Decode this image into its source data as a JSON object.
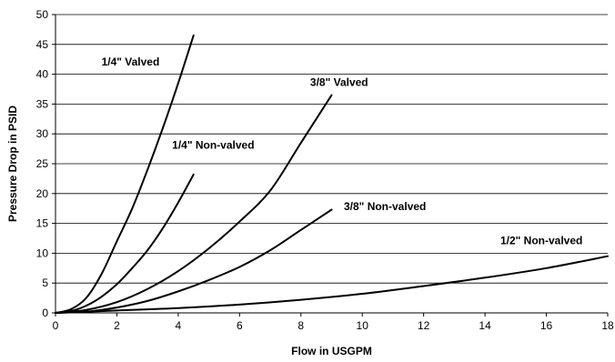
{
  "chart_data": {
    "type": "line",
    "title": "",
    "xlabel": "Flow in USGPM",
    "ylabel": "Pressure Drop in PSID",
    "xlim": [
      0,
      18
    ],
    "ylim": [
      0,
      50
    ],
    "xticks": [
      0,
      2,
      4,
      6,
      8,
      10,
      12,
      14,
      16,
      18
    ],
    "yticks": [
      0,
      5,
      10,
      15,
      20,
      25,
      30,
      35,
      40,
      45,
      50
    ],
    "grid": "horizontal",
    "legend": "none",
    "series": [
      {
        "name": "1/4\" Valved",
        "x": [
          0,
          0.5,
          1.0,
          1.5,
          2.0,
          2.5,
          3.0,
          3.5,
          4.0,
          4.5
        ],
        "y": [
          0,
          0.6,
          2.5,
          6.5,
          12.0,
          17.5,
          24.0,
          31.0,
          38.5,
          46.5
        ]
      },
      {
        "name": "1/4\" Non-valved",
        "x": [
          0,
          0.5,
          1.0,
          1.5,
          2.0,
          2.5,
          3.0,
          3.5,
          4.0,
          4.5
        ],
        "y": [
          0,
          0.3,
          1.2,
          2.7,
          4.8,
          7.5,
          10.5,
          14.2,
          18.5,
          23.2
        ]
      },
      {
        "name": "3/8\" Valved",
        "x": [
          0,
          1,
          2,
          3,
          4,
          5,
          6,
          7,
          8,
          9
        ],
        "y": [
          0,
          0.5,
          1.8,
          4.0,
          7.0,
          10.8,
          15.3,
          20.5,
          28.5,
          36.5
        ]
      },
      {
        "name": "3/8\" Non-valved",
        "x": [
          0,
          1,
          2,
          3,
          4,
          5,
          6,
          7,
          8,
          9
        ],
        "y": [
          0,
          0.2,
          0.9,
          2.0,
          3.6,
          5.5,
          7.7,
          10.5,
          13.9,
          17.3
        ]
      },
      {
        "name": "1/2\" Non-valved",
        "x": [
          0,
          2,
          4,
          6,
          8,
          10,
          12,
          14,
          16,
          18
        ],
        "y": [
          0,
          0.4,
          0.8,
          1.4,
          2.2,
          3.2,
          4.5,
          5.9,
          7.5,
          9.5
        ]
      }
    ],
    "annotations": [
      {
        "text": "1/4\" Valved",
        "x": 1.5,
        "y": 41.5,
        "anchor": "start"
      },
      {
        "text": "1/4\" Non-valved",
        "x": 3.8,
        "y": 27.5,
        "anchor": "start"
      },
      {
        "text": "3/8\" Valved",
        "x": 8.3,
        "y": 38.0,
        "anchor": "start"
      },
      {
        "text": "3/8\" Non-valved",
        "x": 9.4,
        "y": 17.2,
        "anchor": "start"
      },
      {
        "text": "1/2\" Non-valved",
        "x": 14.5,
        "y": 11.5,
        "anchor": "start"
      }
    ]
  }
}
